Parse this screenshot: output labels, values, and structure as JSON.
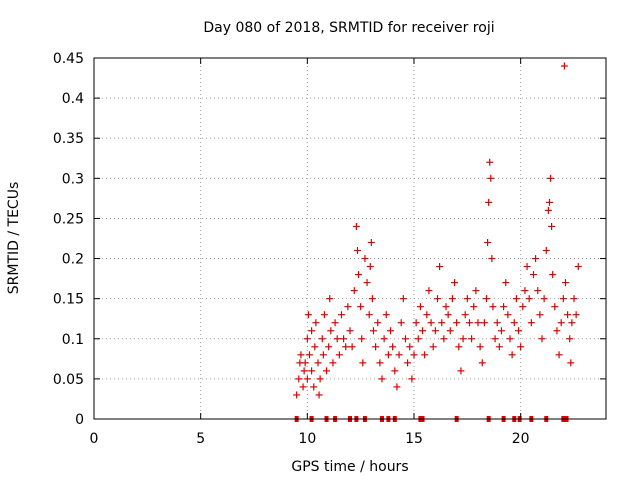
{
  "chart_data": {
    "type": "scatter",
    "title": "Day 080 of 2018, SRMTID for receiver roji",
    "xlabel": "GPS time / hours",
    "ylabel": "SRMTID / TECUs",
    "xlim": [
      0,
      24
    ],
    "ylim": [
      0,
      0.45
    ],
    "xticks": [
      "0",
      "5",
      "10",
      "15",
      "20"
    ],
    "yticks": [
      "0",
      "0.05",
      "0.1",
      "0.15",
      "0.2",
      "0.25",
      "0.3",
      "0.35",
      "0.4",
      "0.45"
    ],
    "xtick_values": [
      0,
      5,
      10,
      15,
      20
    ],
    "ytick_values": [
      0,
      0.05,
      0.1,
      0.15,
      0.2,
      0.25,
      0.3,
      0.35,
      0.4,
      0.45
    ],
    "grid": true,
    "marker": "+",
    "color": "#e00000",
    "series": [
      {
        "name": "SRMTID",
        "points": [
          [
            9.5,
            0.03
          ],
          [
            9.6,
            0.05
          ],
          [
            9.65,
            0.07
          ],
          [
            9.7,
            0.08
          ],
          [
            9.8,
            0.04
          ],
          [
            9.85,
            0.06
          ],
          [
            9.9,
            0.07
          ],
          [
            10.0,
            0.05
          ],
          [
            10.0,
            0.1
          ],
          [
            10.05,
            0.13
          ],
          [
            10.1,
            0.08
          ],
          [
            10.2,
            0.11
          ],
          [
            10.2,
            0.06
          ],
          [
            10.3,
            0.04
          ],
          [
            10.35,
            0.09
          ],
          [
            10.4,
            0.12
          ],
          [
            10.5,
            0.07
          ],
          [
            10.55,
            0.03
          ],
          [
            10.6,
            0.05
          ],
          [
            10.7,
            0.1
          ],
          [
            10.75,
            0.08
          ],
          [
            10.8,
            0.13
          ],
          [
            10.9,
            0.06
          ],
          [
            11.0,
            0.09
          ],
          [
            11.05,
            0.15
          ],
          [
            11.1,
            0.11
          ],
          [
            11.2,
            0.07
          ],
          [
            11.3,
            0.12
          ],
          [
            11.4,
            0.1
          ],
          [
            11.5,
            0.08
          ],
          [
            11.6,
            0.13
          ],
          [
            11.7,
            0.1
          ],
          [
            11.8,
            0.09
          ],
          [
            11.9,
            0.14
          ],
          [
            12.0,
            0.11
          ],
          [
            12.1,
            0.09
          ],
          [
            12.2,
            0.16
          ],
          [
            12.3,
            0.24
          ],
          [
            12.35,
            0.21
          ],
          [
            12.4,
            0.18
          ],
          [
            12.5,
            0.14
          ],
          [
            12.55,
            0.1
          ],
          [
            12.6,
            0.07
          ],
          [
            12.7,
            0.2
          ],
          [
            12.8,
            0.17
          ],
          [
            12.9,
            0.13
          ],
          [
            12.95,
            0.19
          ],
          [
            13.0,
            0.22
          ],
          [
            13.05,
            0.15
          ],
          [
            13.1,
            0.11
          ],
          [
            13.2,
            0.09
          ],
          [
            13.3,
            0.12
          ],
          [
            13.4,
            0.07
          ],
          [
            13.5,
            0.05
          ],
          [
            13.6,
            0.1
          ],
          [
            13.7,
            0.13
          ],
          [
            13.8,
            0.08
          ],
          [
            13.9,
            0.11
          ],
          [
            14.0,
            0.09
          ],
          [
            14.1,
            0.06
          ],
          [
            14.2,
            0.04
          ],
          [
            14.3,
            0.08
          ],
          [
            14.4,
            0.12
          ],
          [
            14.5,
            0.15
          ],
          [
            14.6,
            0.1
          ],
          [
            14.7,
            0.07
          ],
          [
            14.8,
            0.09
          ],
          [
            14.9,
            0.05
          ],
          [
            15.0,
            0.08
          ],
          [
            15.1,
            0.12
          ],
          [
            15.2,
            0.1
          ],
          [
            15.3,
            0.14
          ],
          [
            15.4,
            0.11
          ],
          [
            15.5,
            0.08
          ],
          [
            15.6,
            0.13
          ],
          [
            15.7,
            0.16
          ],
          [
            15.8,
            0.12
          ],
          [
            15.9,
            0.09
          ],
          [
            16.0,
            0.11
          ],
          [
            16.1,
            0.15
          ],
          [
            16.2,
            0.19
          ],
          [
            16.3,
            0.12
          ],
          [
            16.4,
            0.1
          ],
          [
            16.5,
            0.14
          ],
          [
            16.6,
            0.13
          ],
          [
            16.7,
            0.11
          ],
          [
            16.8,
            0.15
          ],
          [
            16.9,
            0.17
          ],
          [
            17.0,
            0.12
          ],
          [
            17.1,
            0.09
          ],
          [
            17.2,
            0.06
          ],
          [
            17.3,
            0.1
          ],
          [
            17.4,
            0.13
          ],
          [
            17.5,
            0.15
          ],
          [
            17.6,
            0.12
          ],
          [
            17.7,
            0.1
          ],
          [
            17.8,
            0.14
          ],
          [
            17.9,
            0.16
          ],
          [
            18.0,
            0.12
          ],
          [
            18.1,
            0.09
          ],
          [
            18.2,
            0.07
          ],
          [
            18.3,
            0.12
          ],
          [
            18.4,
            0.15
          ],
          [
            18.45,
            0.22
          ],
          [
            18.5,
            0.27
          ],
          [
            18.55,
            0.32
          ],
          [
            18.6,
            0.3
          ],
          [
            18.65,
            0.2
          ],
          [
            18.7,
            0.14
          ],
          [
            18.8,
            0.1
          ],
          [
            18.9,
            0.12
          ],
          [
            19.0,
            0.09
          ],
          [
            19.1,
            0.11
          ],
          [
            19.2,
            0.14
          ],
          [
            19.3,
            0.17
          ],
          [
            19.4,
            0.13
          ],
          [
            19.5,
            0.1
          ],
          [
            19.6,
            0.08
          ],
          [
            19.7,
            0.12
          ],
          [
            19.8,
            0.15
          ],
          [
            19.9,
            0.11
          ],
          [
            20.0,
            0.09
          ],
          [
            20.1,
            0.14
          ],
          [
            20.2,
            0.16
          ],
          [
            20.3,
            0.19
          ],
          [
            20.4,
            0.15
          ],
          [
            20.5,
            0.12
          ],
          [
            20.6,
            0.18
          ],
          [
            20.7,
            0.2
          ],
          [
            20.8,
            0.16
          ],
          [
            20.9,
            0.13
          ],
          [
            21.0,
            0.1
          ],
          [
            21.1,
            0.15
          ],
          [
            21.2,
            0.21
          ],
          [
            21.3,
            0.26
          ],
          [
            21.35,
            0.27
          ],
          [
            21.4,
            0.3
          ],
          [
            21.45,
            0.24
          ],
          [
            21.5,
            0.18
          ],
          [
            21.6,
            0.14
          ],
          [
            21.7,
            0.11
          ],
          [
            21.8,
            0.08
          ],
          [
            21.9,
            0.12
          ],
          [
            22.0,
            0.15
          ],
          [
            22.05,
            0.44
          ],
          [
            22.1,
            0.17
          ],
          [
            22.2,
            0.13
          ],
          [
            22.3,
            0.1
          ],
          [
            22.35,
            0.07
          ],
          [
            22.4,
            0.12
          ],
          [
            22.5,
            0.15
          ],
          [
            22.6,
            0.13
          ],
          [
            22.7,
            0.19
          ]
        ]
      }
    ],
    "zero_markers": [
      9.5,
      10.2,
      10.9,
      11.3,
      12.0,
      12.3,
      12.7,
      13.5,
      13.8,
      14.1,
      15.3,
      15.4,
      17.0,
      18.5,
      19.2,
      19.7,
      19.95,
      20.5,
      21.2,
      22.0,
      22.15
    ]
  }
}
